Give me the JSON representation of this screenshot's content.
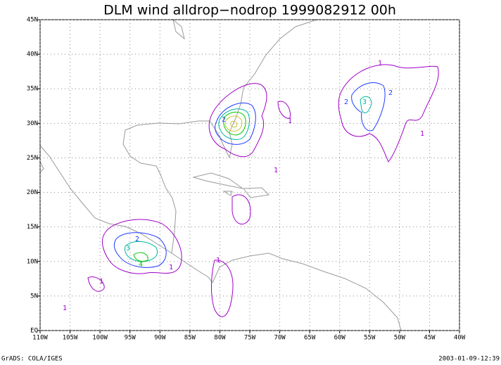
{
  "title": "DLM wind alldrop−nodrop 1999082912 00h",
  "footer_left": "GrADS: COLA/IGES",
  "footer_right": "2003-01-09-12:39",
  "xlim": [
    -110,
    -40
  ],
  "ylim": [
    0,
    45
  ],
  "xticks": [
    {
      "value": -110,
      "label": "110W"
    },
    {
      "value": -105,
      "label": "105W"
    },
    {
      "value": -100,
      "label": "100W"
    },
    {
      "value": -95,
      "label": "95W"
    },
    {
      "value": -90,
      "label": "90W"
    },
    {
      "value": -85,
      "label": "85W"
    },
    {
      "value": -80,
      "label": "80W"
    },
    {
      "value": -75,
      "label": "75W"
    },
    {
      "value": -70,
      "label": "70W"
    },
    {
      "value": -65,
      "label": "65W"
    },
    {
      "value": -60,
      "label": "60W"
    },
    {
      "value": -55,
      "label": "55W"
    },
    {
      "value": -50,
      "label": "50W"
    },
    {
      "value": -45,
      "label": "45W"
    },
    {
      "value": -40,
      "label": "40W"
    }
  ],
  "yticks": [
    {
      "value": 0,
      "label": "EQ"
    },
    {
      "value": 5,
      "label": "5N"
    },
    {
      "value": 10,
      "label": "10N"
    },
    {
      "value": 15,
      "label": "15N"
    },
    {
      "value": 20,
      "label": "20N"
    },
    {
      "value": 25,
      "label": "25N"
    },
    {
      "value": 30,
      "label": "30N"
    },
    {
      "value": 35,
      "label": "35N"
    },
    {
      "value": 40,
      "label": "40N"
    },
    {
      "value": 45,
      "label": "45N"
    }
  ],
  "contour_levels": [
    {
      "value": 1,
      "color": "#a000c8"
    },
    {
      "value": 2,
      "color": "#1e3cff"
    },
    {
      "value": 3,
      "color": "#00b4a0"
    },
    {
      "value": 4,
      "color": "#00c800"
    },
    {
      "value": 5,
      "color": "#c8c832"
    }
  ]
}
